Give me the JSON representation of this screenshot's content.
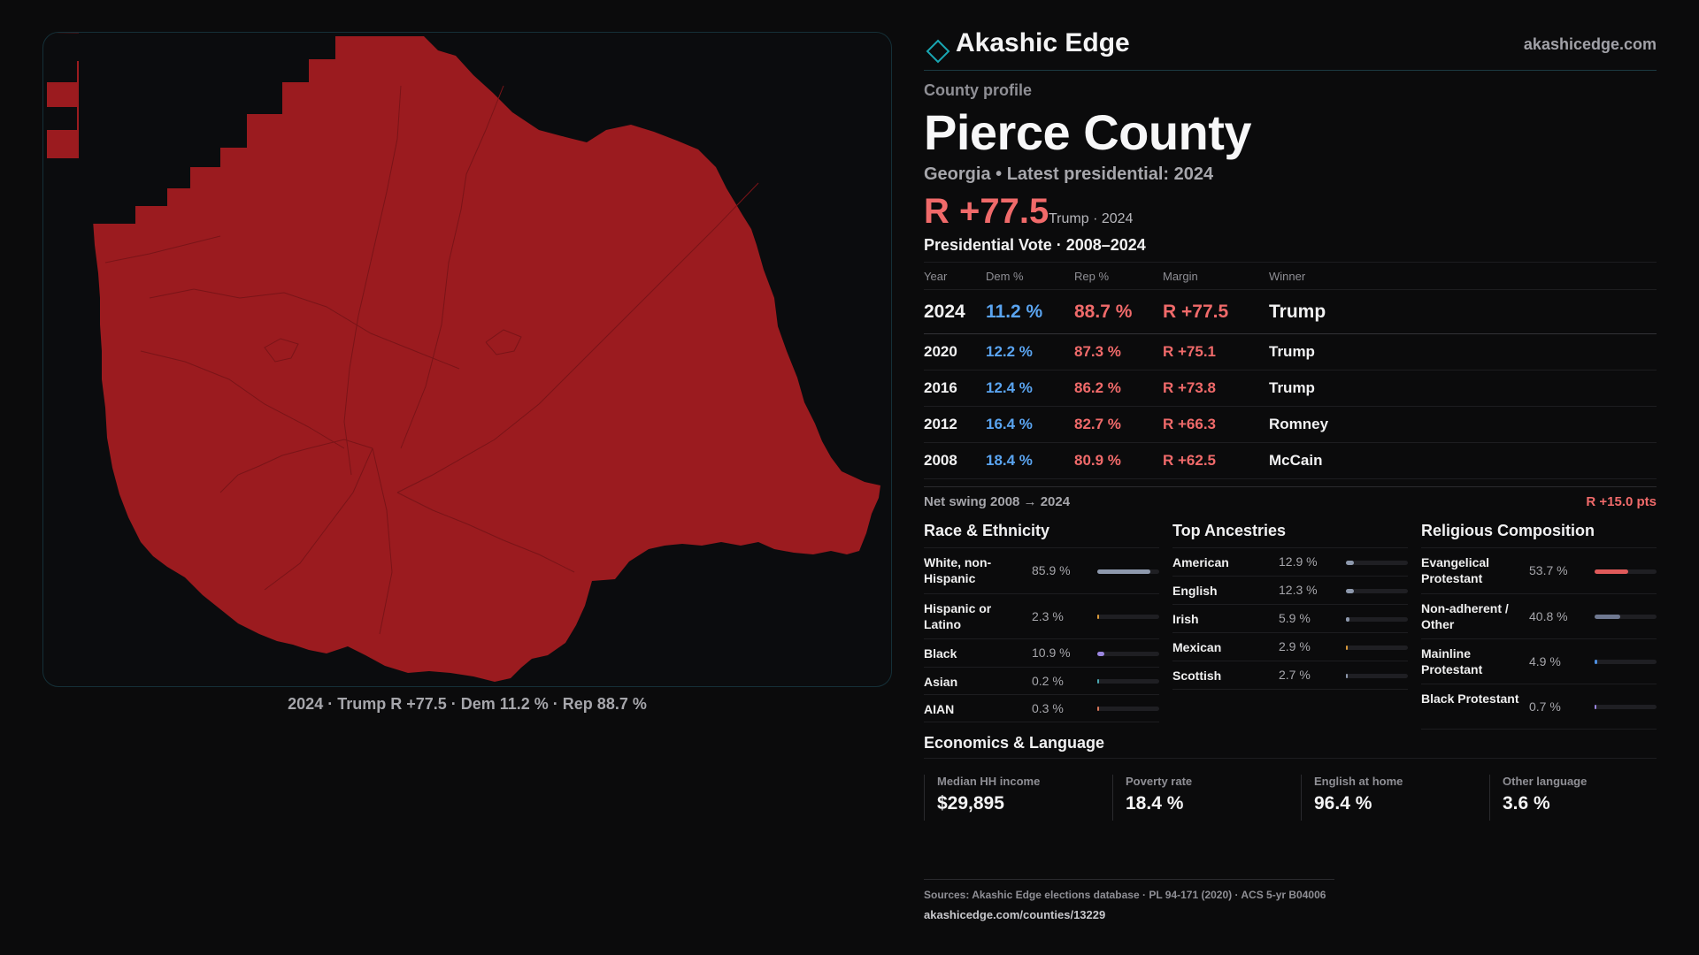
{
  "map": {
    "caption": "2024 · Trump R +77.5 · Dem 11.2 % · Rep 88.7 %",
    "fill_color": "#9b1b1f",
    "border_color": "#153038"
  },
  "brand": {
    "name": "Akashic Edge",
    "site": "akashicedge.com",
    "logo_icon": "diamond-outline-icon",
    "accent": "#19a6b2"
  },
  "profile": {
    "eyebrow": "County profile",
    "county": "Pierce County",
    "subtitle": "Georgia • Latest presidential: 2024",
    "margin": "R +77.5",
    "margin_note": "Trump · 2024"
  },
  "vote": {
    "title": "Presidential Vote · 2008–2024",
    "headers": [
      "Year",
      "Dem %",
      "Rep %",
      "Margin",
      "Winner"
    ],
    "rows": [
      {
        "year": "2024",
        "dem": "11.2 %",
        "rep": "88.7 %",
        "margin": "R +77.5",
        "winner": "Trump"
      },
      {
        "year": "2020",
        "dem": "12.2 %",
        "rep": "87.3 %",
        "margin": "R +75.1",
        "winner": "Trump"
      },
      {
        "year": "2016",
        "dem": "12.4 %",
        "rep": "86.2 %",
        "margin": "R +73.8",
        "winner": "Trump"
      },
      {
        "year": "2012",
        "dem": "16.4 %",
        "rep": "82.7 %",
        "margin": "R +66.3",
        "winner": "Romney"
      },
      {
        "year": "2008",
        "dem": "18.4 %",
        "rep": "80.9 %",
        "margin": "R +62.5",
        "winner": "McCain"
      }
    ],
    "swing_label": "Net swing 2008 → 2024",
    "swing_value": "R +15.0 pts"
  },
  "race": {
    "title": "Race & Ethnicity",
    "rows": [
      {
        "label": "White, non-Hispanic",
        "pct": "85.9 %",
        "value": 85.9,
        "color": "#8e99ad"
      },
      {
        "label": "Hispanic or Latino",
        "pct": "2.3 %",
        "value": 2.3,
        "color": "#d99a3a"
      },
      {
        "label": "Black",
        "pct": "10.9 %",
        "value": 10.9,
        "color": "#9b86e0"
      },
      {
        "label": "Asian",
        "pct": "0.2 %",
        "value": 0.2,
        "color": "#4aa7b0"
      },
      {
        "label": "AIAN",
        "pct": "0.3 %",
        "value": 0.3,
        "color": "#d9775a"
      }
    ]
  },
  "ancestry": {
    "title": "Top Ancestries",
    "rows": [
      {
        "label": "American",
        "pct": "12.9 %",
        "value": 12.9,
        "color": "#8e99ad"
      },
      {
        "label": "English",
        "pct": "12.3 %",
        "value": 12.3,
        "color": "#8e99ad"
      },
      {
        "label": "Irish",
        "pct": "5.9 %",
        "value": 5.9,
        "color": "#8e99ad"
      },
      {
        "label": "Mexican",
        "pct": "2.9 %",
        "value": 2.9,
        "color": "#d99a3a"
      },
      {
        "label": "Scottish",
        "pct": "2.7 %",
        "value": 2.7,
        "color": "#8e99ad"
      }
    ]
  },
  "religion": {
    "title": "Religious Composition",
    "rows": [
      {
        "label": "Evangelical Protestant",
        "pct": "53.7 %",
        "value": 53.7,
        "color": "#e05a5a"
      },
      {
        "label": "Non-adherent / Other",
        "pct": "40.8 %",
        "value": 40.8,
        "color": "#6f7890"
      },
      {
        "label": "Mainline Protestant",
        "pct": "4.9 %",
        "value": 4.9,
        "color": "#4d8fe0"
      },
      {
        "label": "Black Protestant",
        "pct": "0.7 %",
        "value": 0.7,
        "color": "#9b86e0"
      }
    ]
  },
  "economics": {
    "title": "Economics & Language",
    "cards": [
      {
        "label": "Median HH income",
        "value": "$29,895"
      },
      {
        "label": "Poverty rate",
        "value": "18.4 %"
      },
      {
        "label": "English at home",
        "value": "96.4 %"
      },
      {
        "label": "Other language",
        "value": "3.6 %"
      }
    ]
  },
  "sources": {
    "line1": "Sources: Akashic Edge elections database · PL 94-171 (2020) · ACS 5-yr B04006",
    "line2": "akashicedge.com/counties/13229"
  }
}
